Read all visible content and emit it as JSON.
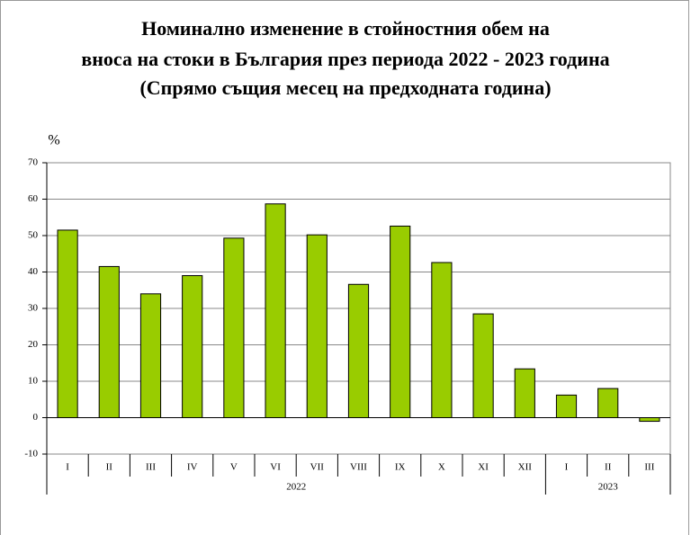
{
  "chart_data": {
    "type": "bar",
    "title": [
      "Номинално изменение в стойностния обем  на",
      "вноса на стоки в България през периода 2022 - 2023 година",
      "(Спрямо същия месец на предходната година)"
    ],
    "y_label": "%",
    "groups": [
      {
        "label": "2022",
        "categories": [
          "I",
          "II",
          "III",
          "IV",
          "V",
          "VI",
          "VII",
          "VIII",
          "IX",
          "X",
          "XI",
          "XII"
        ],
        "values": [
          51.5,
          41.5,
          34,
          39,
          49.3,
          58.7,
          50.2,
          36.6,
          52.6,
          42.6,
          28.5,
          13.4
        ]
      },
      {
        "label": "2023",
        "categories": [
          "I",
          "II",
          "III"
        ],
        "values": [
          6.2,
          8,
          -1
        ]
      }
    ],
    "color": "#99cc00",
    "ylim": [
      -10,
      70
    ],
    "yticks": [
      -10,
      0,
      10,
      20,
      30,
      40,
      50,
      60,
      70
    ],
    "grid": true
  }
}
